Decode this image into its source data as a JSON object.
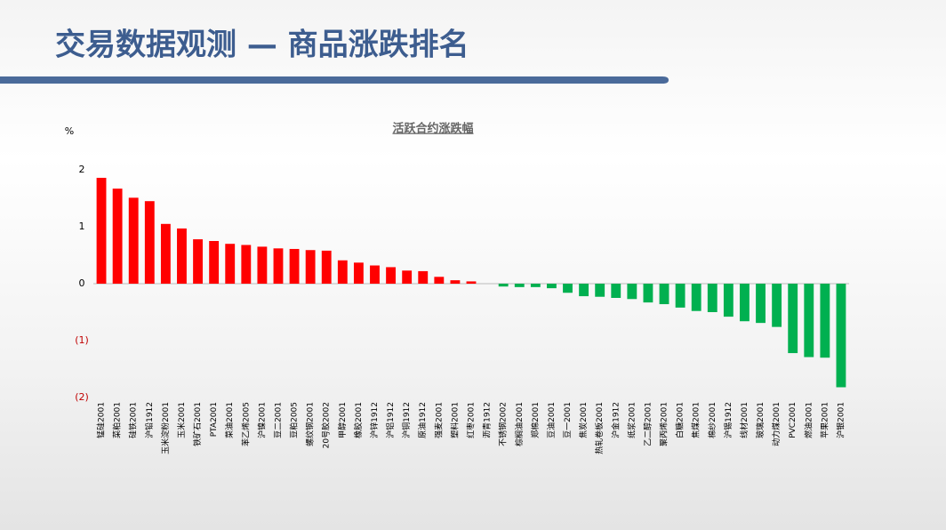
{
  "header": {
    "title": "交易数据观测 — 商品涨跌排名"
  },
  "chart_data": {
    "type": "bar",
    "title": "活跃合约涨跌幅",
    "y_unit": "%",
    "categories": [
      "锰硅2001",
      "菜粕2001",
      "硅铁2001",
      "沪铅1912",
      "玉米淀粉2001",
      "玉米2001",
      "铁矿石2001",
      "PTA2001",
      "菜油2001",
      "苯乙烯2005",
      "沪镍2001",
      "豆二2001",
      "豆粕2005",
      "螺纹钢2001",
      "20号胶2002",
      "甲醇2001",
      "橡胶2001",
      "沪锌1912",
      "沪铝1912",
      "沪铜1912",
      "原油1912",
      "强麦2001",
      "塑料2001",
      "红枣2001",
      "沥青1912",
      "不锈钢2002",
      "棕榈油2001",
      "郑棉2001",
      "豆油2001",
      "豆一2001",
      "焦炭2001",
      "热轧卷板2001",
      "沪金1912",
      "纸浆2001",
      "乙二醇2001",
      "聚丙烯2001",
      "白糖2001",
      "焦煤2001",
      "棉纱2001",
      "沪锡1912",
      "线材2001",
      "玻璃2001",
      "动力煤2001",
      "PVC2001",
      "燃油2001",
      "苹果2001",
      "沪银2001"
    ],
    "values": [
      1.86,
      1.67,
      1.51,
      1.45,
      1.05,
      0.97,
      0.78,
      0.75,
      0.7,
      0.68,
      0.65,
      0.62,
      0.61,
      0.59,
      0.58,
      0.41,
      0.37,
      0.32,
      0.29,
      0.23,
      0.22,
      0.12,
      0.06,
      0.04,
      0.0,
      -0.05,
      -0.06,
      -0.06,
      -0.08,
      -0.16,
      -0.22,
      -0.23,
      -0.25,
      -0.27,
      -0.33,
      -0.36,
      -0.42,
      -0.48,
      -0.5,
      -0.58,
      -0.66,
      -0.69,
      -0.76,
      -1.22,
      -1.29,
      -1.3,
      -1.82
    ],
    "positive_color": "#ff0000",
    "negative_color": "#00b050",
    "ylim": [
      -2,
      2
    ],
    "yticks": [
      2,
      1,
      0,
      {
        "value": -1,
        "label": "(1)"
      },
      {
        "value": -2,
        "label": "(2)"
      }
    ]
  }
}
